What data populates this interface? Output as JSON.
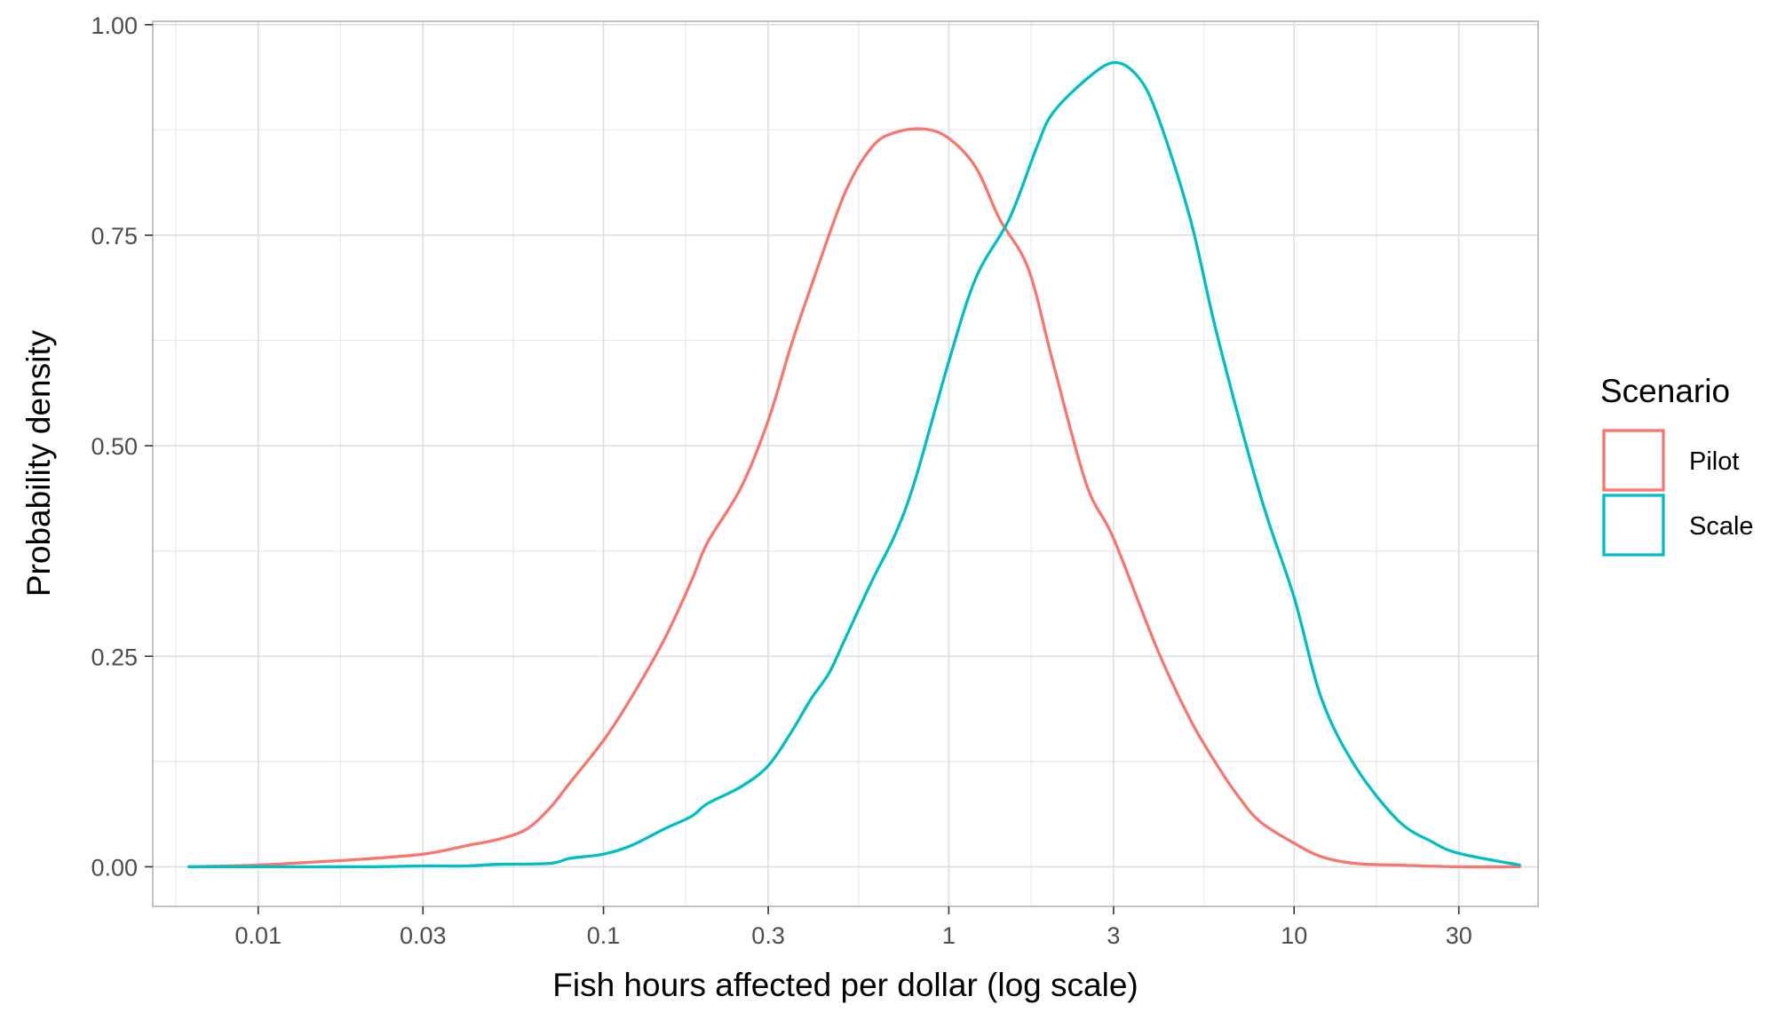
{
  "chart_data": {
    "type": "line",
    "xlabel": "Fish hours affected per dollar (log scale)",
    "ylabel": "Probability density",
    "x_scale": "log10",
    "xlim": [
      0.00495,
      50.9
    ],
    "ylim": [
      -0.047,
      1.004
    ],
    "x_ticks": [
      {
        "value": 0.01,
        "label": "0.01"
      },
      {
        "value": 0.03,
        "label": "0.03"
      },
      {
        "value": 0.1,
        "label": "0.1"
      },
      {
        "value": 0.3,
        "label": "0.3"
      },
      {
        "value": 1,
        "label": "1"
      },
      {
        "value": 3,
        "label": "3"
      },
      {
        "value": 10,
        "label": "10"
      },
      {
        "value": 30,
        "label": "30"
      }
    ],
    "y_ticks": [
      {
        "value": 0,
        "label": "0.00"
      },
      {
        "value": 0.25,
        "label": "0.25"
      },
      {
        "value": 0.5,
        "label": "0.50"
      },
      {
        "value": 0.75,
        "label": "0.75"
      },
      {
        "value": 1,
        "label": "1.00"
      }
    ],
    "grid": true,
    "legend": {
      "title": "Scenario",
      "position": "right"
    },
    "series": [
      {
        "name": "Pilot",
        "color": "#F8766D",
        "points": [
          [
            0.0063,
            0.0
          ],
          [
            0.01,
            0.002
          ],
          [
            0.015,
            0.006
          ],
          [
            0.02,
            0.009
          ],
          [
            0.03,
            0.015
          ],
          [
            0.04,
            0.025
          ],
          [
            0.05,
            0.033
          ],
          [
            0.06,
            0.045
          ],
          [
            0.07,
            0.07
          ],
          [
            0.08,
            0.1
          ],
          [
            0.1,
            0.15
          ],
          [
            0.12,
            0.2
          ],
          [
            0.15,
            0.27
          ],
          [
            0.18,
            0.34
          ],
          [
            0.2,
            0.385
          ],
          [
            0.25,
            0.45
          ],
          [
            0.3,
            0.53
          ],
          [
            0.35,
            0.62
          ],
          [
            0.4,
            0.69
          ],
          [
            0.5,
            0.8
          ],
          [
            0.6,
            0.855
          ],
          [
            0.7,
            0.872
          ],
          [
            0.85,
            0.876
          ],
          [
            1.0,
            0.865
          ],
          [
            1.2,
            0.83
          ],
          [
            1.4,
            0.77
          ],
          [
            1.7,
            0.71
          ],
          [
            2.0,
            0.6
          ],
          [
            2.5,
            0.455
          ],
          [
            3.0,
            0.39
          ],
          [
            4.0,
            0.26
          ],
          [
            5.0,
            0.175
          ],
          [
            6.0,
            0.12
          ],
          [
            7.0,
            0.08
          ],
          [
            8.0,
            0.053
          ],
          [
            10.0,
            0.028
          ],
          [
            12.0,
            0.012
          ],
          [
            15.0,
            0.004
          ],
          [
            20.0,
            0.002
          ],
          [
            30.0,
            0.0
          ],
          [
            45.0,
            0.0
          ]
        ]
      },
      {
        "name": "Scale",
        "color": "#00BFC4",
        "points": [
          [
            0.0063,
            0.0
          ],
          [
            0.01,
            0.0
          ],
          [
            0.02,
            0.0
          ],
          [
            0.03,
            0.001
          ],
          [
            0.04,
            0.001
          ],
          [
            0.05,
            0.003
          ],
          [
            0.07,
            0.004
          ],
          [
            0.08,
            0.01
          ],
          [
            0.1,
            0.015
          ],
          [
            0.12,
            0.025
          ],
          [
            0.15,
            0.045
          ],
          [
            0.18,
            0.06
          ],
          [
            0.2,
            0.075
          ],
          [
            0.25,
            0.095
          ],
          [
            0.3,
            0.12
          ],
          [
            0.35,
            0.16
          ],
          [
            0.4,
            0.2
          ],
          [
            0.45,
            0.23
          ],
          [
            0.5,
            0.27
          ],
          [
            0.6,
            0.34
          ],
          [
            0.7,
            0.395
          ],
          [
            0.8,
            0.46
          ],
          [
            1.0,
            0.6
          ],
          [
            1.2,
            0.7
          ],
          [
            1.5,
            0.77
          ],
          [
            1.8,
            0.855
          ],
          [
            2.0,
            0.895
          ],
          [
            2.5,
            0.935
          ],
          [
            3.0,
            0.955
          ],
          [
            3.5,
            0.94
          ],
          [
            4.0,
            0.895
          ],
          [
            5.0,
            0.77
          ],
          [
            6.0,
            0.63
          ],
          [
            8.0,
            0.44
          ],
          [
            10.0,
            0.32
          ],
          [
            12.0,
            0.2
          ],
          [
            15.0,
            0.12
          ],
          [
            20.0,
            0.055
          ],
          [
            25.0,
            0.03
          ],
          [
            30.0,
            0.016
          ],
          [
            45.0,
            0.002
          ]
        ]
      }
    ]
  }
}
